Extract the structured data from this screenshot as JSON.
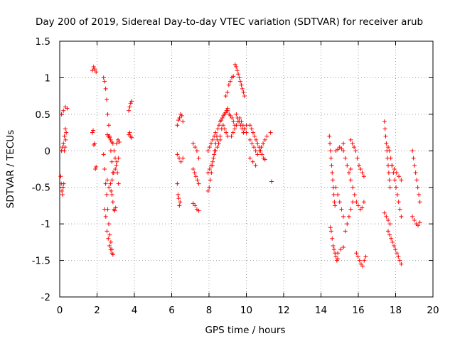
{
  "chart_data": {
    "type": "scatter",
    "title": "Day 200 of 2019, Sidereal Day-to-day VTEC variation (SDTVAR) for receiver arub",
    "xlabel": "GPS time / hours",
    "ylabel": "SDTVAR / TECUs",
    "xlim": [
      0,
      20
    ],
    "ylim": [
      -2,
      1.5
    ],
    "xticks": [
      0,
      2,
      4,
      6,
      8,
      10,
      12,
      14,
      16,
      18,
      20
    ],
    "yticks": [
      -2,
      -1.5,
      -1,
      -0.5,
      0,
      0.5,
      1,
      1.5
    ],
    "ytick_labels": [
      "-2",
      "-1.5",
      "-1",
      "-0.5",
      "0",
      "0.5",
      "1",
      "1.5"
    ],
    "grid": true,
    "marker": "+",
    "color": "#ff0000",
    "series": [
      {
        "name": "SDTVAR",
        "segments": [
          {
            "t0": 0.05,
            "t1": 0.35,
            "y": [
              -0.35,
              -0.45,
              -0.55,
              -0.6,
              -0.5,
              -0.45,
              0.0,
              0.05,
              0.15,
              0.25
            ]
          },
          {
            "t0": 0.1,
            "t1": 0.4,
            "y": [
              0.5,
              0.55,
              0.6,
              0.58
            ]
          },
          {
            "t0": 0.1,
            "t1": 0.3,
            "y": [
              0.0,
              0.05,
              0.1,
              0.2,
              0.3
            ]
          },
          {
            "t0": 1.75,
            "t1": 1.95,
            "y": [
              1.1,
              1.15,
              1.12,
              1.08
            ]
          },
          {
            "t0": 1.75,
            "t1": 1.95,
            "y": [
              0.25,
              0.28,
              0.08,
              0.1,
              -0.25,
              -0.22
            ]
          },
          {
            "t0": 2.35,
            "t1": 2.85,
            "y": [
              1.0,
              0.95,
              0.85,
              0.7,
              0.5,
              0.35,
              0.2,
              0.0,
              -0.15,
              -0.3
            ]
          },
          {
            "t0": 2.35,
            "t1": 2.85,
            "y": [
              -0.05,
              -0.25,
              -0.45,
              -0.6,
              -0.8,
              -1.0,
              -1.15,
              -1.25,
              -1.35,
              -1.42
            ]
          },
          {
            "t0": 2.4,
            "t1": 2.8,
            "y": [
              -0.8,
              -0.9,
              -1.1,
              -1.2,
              -1.3,
              -1.35,
              -1.4
            ]
          },
          {
            "t0": 2.55,
            "t1": 3.15,
            "y": [
              0.22,
              0.2,
              0.18,
              0.15,
              0.12,
              0.1,
              0.0,
              -0.1,
              -0.2,
              -0.3,
              -0.45
            ]
          },
          {
            "t0": 2.55,
            "t1": 3.15,
            "y": [
              -0.4,
              -0.5,
              -0.45,
              -0.4,
              -0.3,
              -0.25,
              -0.15,
              -0.1
            ]
          },
          {
            "t0": 2.75,
            "t1": 3.0,
            "y": [
              -0.55,
              -0.6,
              -0.7,
              -0.8,
              -0.82,
              -0.78
            ]
          },
          {
            "t0": 3.05,
            "t1": 3.2,
            "y": [
              0.1,
              0.15,
              0.12
            ]
          },
          {
            "t0": 3.7,
            "t1": 3.85,
            "y": [
              0.55,
              0.6,
              0.65,
              0.68
            ]
          },
          {
            "t0": 3.7,
            "t1": 3.85,
            "y": [
              0.22,
              0.25,
              0.2,
              0.18
            ]
          },
          {
            "t0": 6.3,
            "t1": 6.6,
            "y": [
              0.35,
              0.42,
              0.45,
              0.5,
              0.48,
              0.4
            ]
          },
          {
            "t0": 6.3,
            "t1": 6.6,
            "y": [
              -0.05,
              -0.1,
              -0.15,
              -0.1
            ]
          },
          {
            "t0": 6.3,
            "t1": 6.45,
            "y": [
              -0.45,
              -0.6,
              -0.65,
              -0.75,
              -0.7
            ]
          },
          {
            "t0": 7.15,
            "t1": 7.45,
            "y": [
              0.1,
              0.05,
              0.0,
              -0.1
            ]
          },
          {
            "t0": 7.15,
            "t1": 7.45,
            "y": [
              -0.25,
              -0.3,
              -0.35,
              -0.4,
              -0.45
            ]
          },
          {
            "t0": 7.15,
            "t1": 7.45,
            "y": [
              -0.72,
              -0.75,
              -0.8,
              -0.82
            ]
          },
          {
            "t0": 7.95,
            "t1": 9.0,
            "y": [
              -0.55,
              -0.5,
              -0.4,
              -0.3,
              -0.2,
              -0.1,
              0.0,
              0.1,
              0.2,
              0.3,
              0.35,
              0.4,
              0.42,
              0.45,
              0.48,
              0.5,
              0.52,
              0.55,
              0.58
            ]
          },
          {
            "t0": 7.95,
            "t1": 9.0,
            "y": [
              0.0,
              0.05,
              0.1,
              0.15,
              0.2,
              0.25,
              0.15,
              0.1,
              0.2,
              0.3,
              0.35,
              0.3,
              0.25,
              0.2
            ]
          },
          {
            "t0": 7.95,
            "t1": 8.6,
            "y": [
              -0.3,
              -0.25,
              -0.2,
              -0.15,
              -0.05,
              0.0,
              0.05,
              0.1,
              0.15
            ]
          },
          {
            "t0": 8.9,
            "t1": 9.3,
            "y": [
              0.75,
              0.8,
              0.9,
              0.95,
              1.0,
              1.02
            ]
          },
          {
            "t0": 9.4,
            "t1": 9.9,
            "y": [
              1.18,
              1.15,
              1.1,
              1.05,
              1.0,
              0.95,
              0.9,
              0.85,
              0.8,
              0.75
            ]
          },
          {
            "t0": 9.0,
            "t1": 10.0,
            "y": [
              0.55,
              0.5,
              0.48,
              0.45,
              0.4,
              0.35,
              0.5,
              0.45,
              0.4,
              0.35,
              0.3,
              0.25,
              0.3,
              0.35
            ]
          },
          {
            "t0": 9.2,
            "t1": 10.0,
            "y": [
              0.2,
              0.25,
              0.3,
              0.35,
              0.4,
              0.45,
              0.4,
              0.35,
              0.3,
              0.25
            ]
          },
          {
            "t0": 10.2,
            "t1": 11.0,
            "y": [
              0.35,
              0.3,
              0.25,
              0.2,
              0.15,
              0.1,
              0.05,
              0.0,
              -0.05,
              -0.1,
              -0.12
            ]
          },
          {
            "t0": 10.2,
            "t1": 11.1,
            "y": [
              0.15,
              0.1,
              0.05,
              0.0,
              -0.05,
              0.0,
              0.05,
              0.1,
              0.15,
              0.2
            ]
          },
          {
            "t0": 10.2,
            "t1": 10.5,
            "y": [
              -0.1,
              -0.15,
              -0.2
            ]
          },
          {
            "t0": 11.3,
            "t1": 11.4,
            "y": [
              0.25
            ]
          },
          {
            "t0": 11.35,
            "t1": 11.45,
            "y": [
              -0.42
            ]
          },
          {
            "t0": 14.45,
            "t1": 14.75,
            "y": [
              0.2,
              0.1,
              0.0,
              -0.1,
              -0.2,
              -0.3,
              -0.4,
              -0.5,
              -0.6,
              -0.7,
              -0.75
            ]
          },
          {
            "t0": 14.5,
            "t1": 14.9,
            "y": [
              -1.05,
              -1.1,
              -1.2,
              -1.3,
              -1.35,
              -1.4,
              -1.45,
              -1.5,
              -1.48
            ]
          },
          {
            "t0": 14.9,
            "t1": 15.2,
            "y": [
              -1.4,
              -1.35,
              -1.32
            ]
          },
          {
            "t0": 14.8,
            "t1": 15.2,
            "y": [
              0.0,
              0.02,
              0.05,
              0.03,
              0.0
            ]
          },
          {
            "t0": 14.8,
            "t1": 15.2,
            "y": [
              -0.5,
              -0.6,
              -0.7,
              -0.8,
              -0.9
            ]
          },
          {
            "t0": 15.2,
            "t1": 15.6,
            "y": [
              0.1,
              -0.1,
              -0.2,
              -0.3,
              -0.25
            ]
          },
          {
            "t0": 15.3,
            "t1": 15.7,
            "y": [
              -1.1,
              -1.0,
              -0.9,
              -0.8,
              -0.7
            ]
          },
          {
            "t0": 15.6,
            "t1": 16.3,
            "y": [
              0.15,
              0.1,
              0.05,
              0.0,
              -0.1,
              -0.2,
              -0.25,
              -0.3,
              -0.35
            ]
          },
          {
            "t0": 15.6,
            "t1": 16.3,
            "y": [
              -0.4,
              -0.5,
              -0.6,
              -0.7,
              -0.75,
              -0.8,
              -0.78,
              -0.7
            ]
          },
          {
            "t0": 15.9,
            "t1": 16.4,
            "y": [
              -1.4,
              -1.45,
              -1.5,
              -1.55,
              -1.58,
              -1.5,
              -1.45
            ]
          },
          {
            "t0": 17.4,
            "t1": 17.7,
            "y": [
              0.4,
              0.3,
              0.2,
              0.1,
              0.0,
              -0.1,
              -0.2,
              -0.3,
              -0.4,
              -0.5
            ]
          },
          {
            "t0": 17.4,
            "t1": 17.7,
            "y": [
              -0.85,
              -0.9,
              -0.95,
              -1.0
            ]
          },
          {
            "t0": 17.6,
            "t1": 18.3,
            "y": [
              -1.1,
              -1.15,
              -1.2,
              -1.25,
              -1.3,
              -1.35,
              -1.4,
              -1.45,
              -1.5,
              -1.55
            ]
          },
          {
            "t0": 17.6,
            "t1": 18.3,
            "y": [
              0.05,
              0.0,
              -0.1,
              -0.2,
              -0.3,
              -0.4,
              -0.5,
              -0.6,
              -0.7,
              -0.8,
              -0.9
            ]
          },
          {
            "t0": 17.8,
            "t1": 18.3,
            "y": [
              -0.2,
              -0.25,
              -0.3,
              -0.35,
              -0.4
            ]
          },
          {
            "t0": 18.9,
            "t1": 19.3,
            "y": [
              0.0,
              -0.1,
              -0.2,
              -0.3,
              -0.4,
              -0.5,
              -0.6,
              -0.7
            ]
          },
          {
            "t0": 18.9,
            "t1": 19.3,
            "y": [
              -0.9,
              -0.95,
              -1.0,
              -1.02,
              -0.98
            ]
          }
        ]
      }
    ]
  }
}
